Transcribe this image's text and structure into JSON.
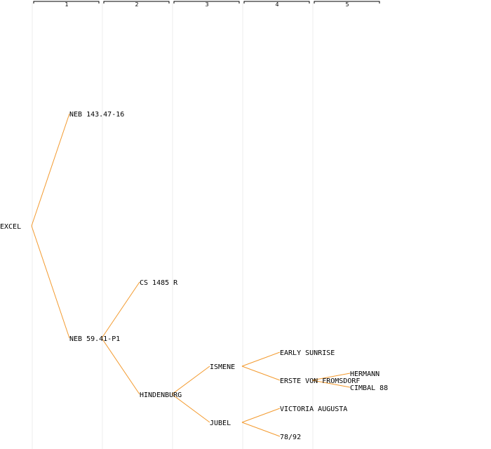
{
  "generations": [
    "1",
    "2",
    "3",
    "4",
    "5"
  ],
  "colors": {
    "edge": "#f39a2e",
    "column_line": "#ececec",
    "header_bracket": "#000000",
    "text": "#000000"
  },
  "tree": {
    "root": "EXCEL",
    "nodes": [
      {
        "id": "excel",
        "label": "EXCEL",
        "parent": null,
        "generation": 0
      },
      {
        "id": "neb-143",
        "label": "NEB 143.47-16",
        "parent": "excel",
        "generation": 1
      },
      {
        "id": "neb-59",
        "label": "NEB 59.41-P1",
        "parent": "excel",
        "generation": 1
      },
      {
        "id": "cs-1485",
        "label": "CS 1485 R",
        "parent": "neb-59",
        "generation": 2
      },
      {
        "id": "hindenburg",
        "label": "HINDENBURG",
        "parent": "neb-59",
        "generation": 2
      },
      {
        "id": "ismene",
        "label": "ISMENE",
        "parent": "hindenburg",
        "generation": 3
      },
      {
        "id": "jubel",
        "label": "JUBEL",
        "parent": "hindenburg",
        "generation": 3
      },
      {
        "id": "early-sunrise",
        "label": "EARLY SUNRISE",
        "parent": "ismene",
        "generation": 4
      },
      {
        "id": "erste-von-fromsdorf",
        "label": "ERSTE VON FROMSDORF",
        "parent": "ismene",
        "generation": 4
      },
      {
        "id": "victoria-augusta",
        "label": "VICTORIA AUGUSTA",
        "parent": "jubel",
        "generation": 4
      },
      {
        "id": "78-92",
        "label": "78/92",
        "parent": "jubel",
        "generation": 4
      },
      {
        "id": "hermann",
        "label": "HERMANN",
        "parent": "erste-von-fromsdorf",
        "generation": 5
      },
      {
        "id": "cimbal-88",
        "label": "CIMBAL 88",
        "parent": "erste-von-fromsdorf",
        "generation": 5
      }
    ]
  }
}
